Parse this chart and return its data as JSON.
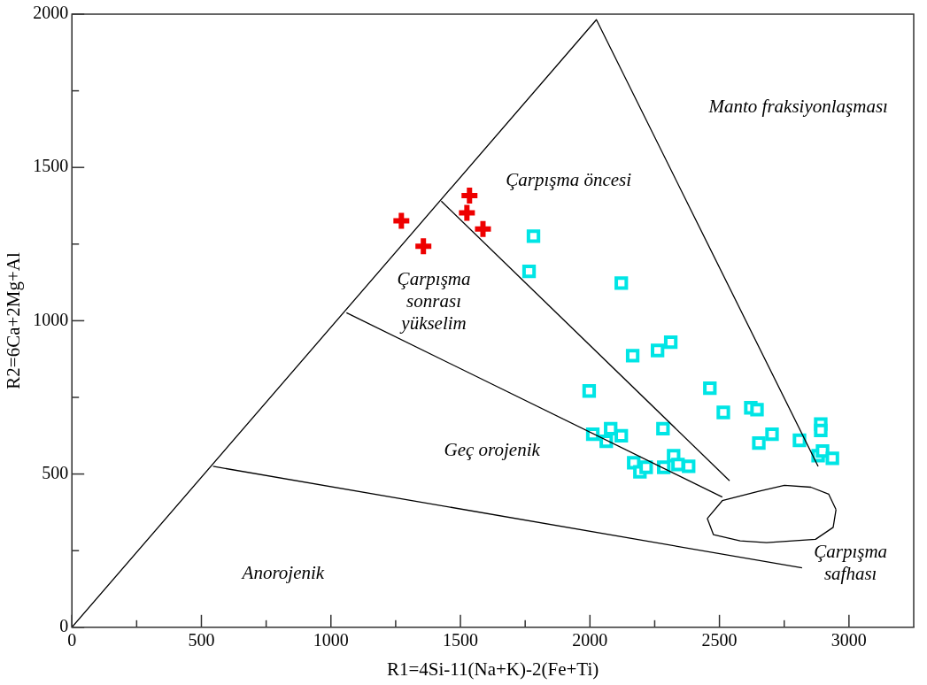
{
  "chart_data": {
    "type": "scatter",
    "xlabel": "R1=4Si-11(Na+K)-2(Fe+Ti)",
    "ylabel": "R2=6Ca+2Mg+Al",
    "xlim": [
      0,
      3250
    ],
    "ylim": [
      0,
      2000
    ],
    "xticks": [
      0,
      {
        "value": 250,
        "label": null
      },
      500,
      {
        "value": 750,
        "label": null
      },
      1000,
      {
        "value": 1250,
        "label": null
      },
      1500,
      {
        "value": 1750,
        "label": null
      },
      2000,
      {
        "value": 2250,
        "label": null
      },
      2500,
      {
        "value": 2750,
        "label": null
      },
      3000
    ],
    "yticks": [
      0,
      {
        "value": 250,
        "label": null
      },
      500,
      {
        "value": 750,
        "label": null
      },
      1000,
      {
        "value": 1250,
        "label": null
      },
      1500,
      {
        "value": 1750,
        "label": null
      },
      2000
    ],
    "grid": false,
    "legend": false,
    "series": [
      {
        "type": "line",
        "color": "#000000",
        "marker": "none",
        "x": [
          0,
          2025,
          2881
        ],
        "values": [
          0,
          1982,
          525
        ]
      },
      {
        "type": "line",
        "color": "#000000",
        "marker": "none",
        "x": [
          1426,
          2539
        ],
        "values": [
          1390,
          478
        ]
      },
      {
        "type": "line",
        "color": "#000000",
        "marker": "none",
        "x": [
          1060,
          2511
        ],
        "values": [
          1026,
          425
        ]
      },
      {
        "type": "line",
        "color": "#000000",
        "marker": "none",
        "x": [
          545,
          2819
        ],
        "values": [
          525,
          194
        ]
      },
      {
        "type": "line",
        "color": "#000000",
        "marker": "none",
        "x": [
          2453,
          2511,
          2648,
          2751,
          2853,
          2922,
          2950
        ],
        "values": [
          355,
          413,
          443,
          463,
          457,
          434,
          384
        ]
      },
      {
        "type": "line",
        "color": "#000000",
        "marker": "none",
        "x": [
          2453,
          2477,
          2580,
          2682,
          2871,
          2939,
          2950
        ],
        "values": [
          355,
          302,
          282,
          276,
          287,
          326,
          384
        ]
      },
      {
        "color": "#ee0000",
        "marker": "cross",
        "x": [
          1272,
          1357,
          1535,
          1525,
          1587
        ],
        "values": [
          1326,
          1243,
          1408,
          1352,
          1299
        ]
      },
      {
        "color": "#00e5e5",
        "marker": "square",
        "x": [
          1782,
          1765,
          2121,
          2165,
          2261,
          2312,
          1997,
          2463,
          2515,
          2621,
          2645,
          2703,
          2652,
          2809,
          2891,
          2891,
          2881,
          2898,
          2936,
          2011,
          2080,
          2063,
          2121,
          2282,
          2169,
          2193,
          2217,
          2285,
          2323,
          2340,
          2381
        ],
        "values": [
          1276,
          1161,
          1123,
          886,
          903,
          930,
          771,
          780,
          701,
          716,
          710,
          630,
          601,
          610,
          663,
          642,
          560,
          575,
          551,
          630,
          648,
          607,
          625,
          648,
          537,
          507,
          522,
          522,
          560,
          531,
          525
        ]
      }
    ],
    "annotations": [
      "Manto fraksiyonlaşması",
      "Çarpışma öncesi",
      "Çarpışma\nsonrası\nyükselim",
      "Geç orojenik",
      "Anorojenik",
      "Çarpışma\nsafhası"
    ]
  }
}
